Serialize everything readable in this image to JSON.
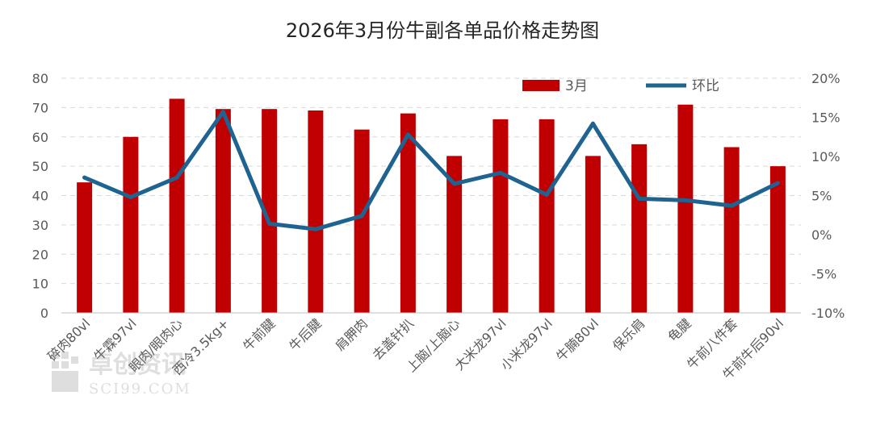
{
  "chart_data": {
    "type": "bar",
    "title": "2026年3月份牛副各单品价格走势图",
    "categories": [
      "碎肉80vl",
      "牛霖97vl",
      "眼肉/眼肉心",
      "西冷3.5kg+",
      "牛前腱",
      "牛后腱",
      "肩胛肉",
      "去盖针扒",
      "上脑/上脑心",
      "大米龙97vl",
      "小米龙97vl",
      "牛腩80vl",
      "保乐肩",
      "龟腱",
      "牛前八件套",
      "牛前牛后90vl"
    ],
    "series": [
      {
        "name": "3月",
        "type": "bar",
        "axis": "left",
        "color": "#c00000",
        "values": [
          44.5,
          60,
          73,
          69.5,
          69.5,
          69,
          62.5,
          68,
          53.5,
          66,
          66,
          53.5,
          57.5,
          71,
          56.5,
          50
        ]
      },
      {
        "name": "环比",
        "type": "line",
        "axis": "right",
        "color": "#1f6391",
        "values": [
          7.3,
          4.8,
          7.3,
          15.7,
          1.4,
          0.7,
          2.4,
          12.8,
          6.5,
          7.9,
          5.1,
          14.2,
          4.6,
          4.4,
          3.7,
          6.6
        ]
      }
    ],
    "ylim_left": [
      0,
      80
    ],
    "yticks_left": [
      "0",
      "10",
      "20",
      "30",
      "40",
      "50",
      "60",
      "70",
      "80"
    ],
    "ylim_right": [
      -10,
      20
    ],
    "yticks_right": [
      "-10%",
      "-5%",
      "0%",
      "5%",
      "10%",
      "15%",
      "20%"
    ],
    "grid": true,
    "legend_position": "top-right"
  },
  "watermark": "卓创资讯 SCI99.COM"
}
